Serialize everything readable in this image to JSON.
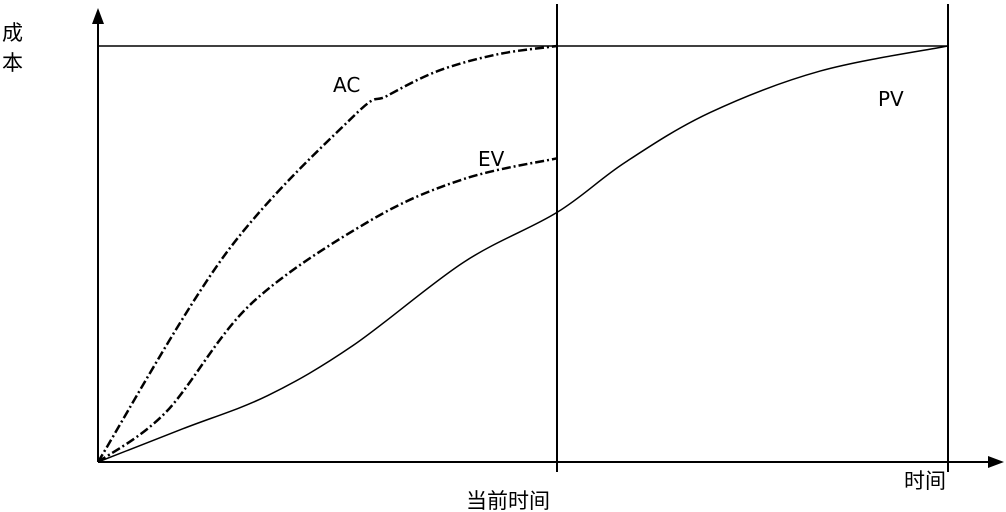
{
  "chart_data": {
    "type": "line",
    "ylabel": "成本",
    "xlabel": "时间",
    "current_time_label": "当前时间",
    "axis_range": {
      "x": [
        0,
        1
      ],
      "y": [
        0,
        1
      ]
    },
    "grid": false,
    "series": [
      {
        "name": "AC",
        "style": "dash-dot",
        "x": [
          0,
          0.15,
          0.3,
          0.34,
          0.4,
          0.47,
          0.54
        ],
        "y": [
          0,
          0.5,
          0.83,
          0.88,
          0.94,
          0.98,
          1.0
        ]
      },
      {
        "name": "EV",
        "style": "dash-dot",
        "x": [
          0,
          0.08,
          0.18,
          0.32,
          0.43,
          0.54
        ],
        "y": [
          0,
          0.12,
          0.38,
          0.58,
          0.68,
          0.73
        ]
      },
      {
        "name": "PV",
        "style": "solid",
        "x": [
          0,
          0.1,
          0.2,
          0.3,
          0.43,
          0.54,
          0.62,
          0.72,
          0.85,
          1.0
        ],
        "y": [
          0,
          0.08,
          0.16,
          0.28,
          0.48,
          0.6,
          0.72,
          0.84,
          0.94,
          1.0
        ]
      }
    ],
    "current_time_x": 0.54,
    "end_time_x": 1.0,
    "budget_y": 1.0
  },
  "colors": {
    "line": "#000000",
    "background": "#ffffff"
  }
}
